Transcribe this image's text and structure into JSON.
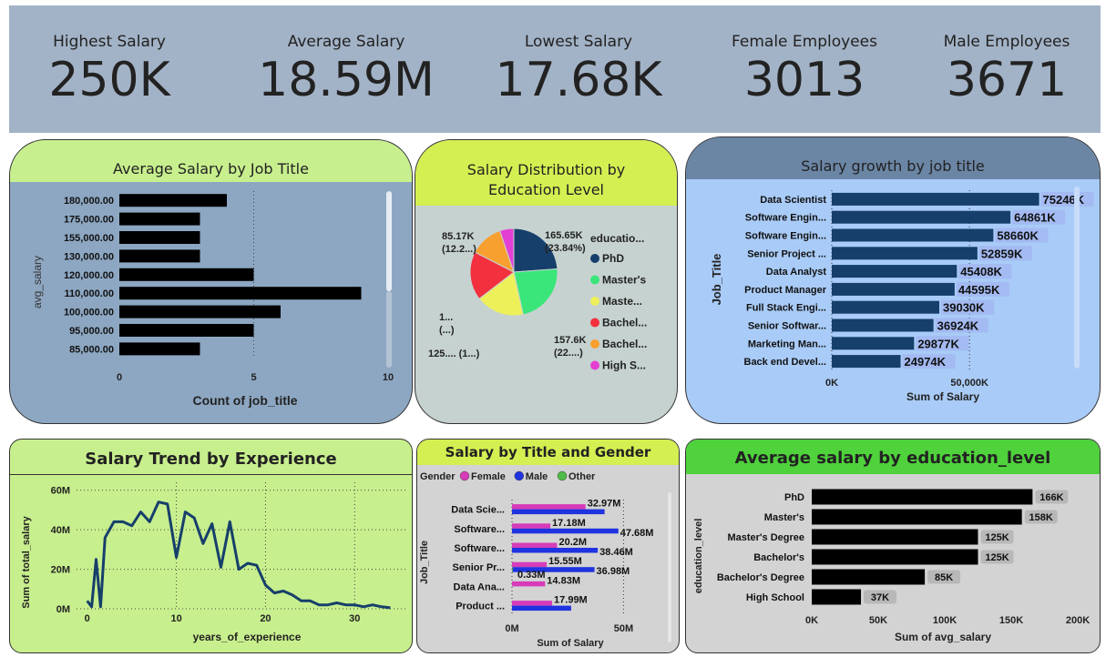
{
  "kpis": [
    {
      "label": "Highest Salary",
      "value": "250K"
    },
    {
      "label": "Average Salary",
      "value": "18.59M"
    },
    {
      "label": "Lowest Salary",
      "value": "17.68K"
    },
    {
      "label": "Female Employees",
      "value": "3013"
    },
    {
      "label": "Male Employees",
      "value": "3671"
    }
  ],
  "colors": {
    "kpi_bg": "#a3b3c7",
    "navy": "#163f6b",
    "black_bar": "#000000",
    "light_green": "#c8ef8e",
    "lime": "#d4ef52",
    "bright_green": "#4fd23c",
    "light_blue": "#a9cbf7",
    "slate": "#8da7c2",
    "gray_card": "#c6d2d0",
    "gray": "#d3d3d3"
  },
  "chart_data": [
    {
      "id": "avg_salary_by_job_title",
      "type": "bar",
      "orientation": "horizontal",
      "title": "Average Salary by Job Title",
      "xlabel": "Count of job_title",
      "ylabel": "avg_salary",
      "categories": [
        "180,000.00",
        "175,000.00",
        "155,000.00",
        "130,000.00",
        "120,000.00",
        "110,000.00",
        "100,000.00",
        "95,000.00",
        "85,000.00"
      ],
      "values": [
        4,
        3,
        3,
        3,
        5,
        9,
        6,
        5,
        3
      ],
      "xlim": [
        0,
        10
      ],
      "xticks": [
        "0",
        "5",
        "10"
      ],
      "grid": true
    },
    {
      "id": "salary_distribution_by_education",
      "type": "pie",
      "title": "Salary Distribution by Education Level",
      "legend_title": "educatio...",
      "legend_position": "right",
      "slices": [
        {
          "name": "PhD",
          "value": 23.84,
          "color": "#163f6b",
          "label": "165.65K",
          "sublabel": "(23.84%)"
        },
        {
          "name": "Master's",
          "value": 22.7,
          "color": "#3ae67a",
          "label": "157.6K",
          "sublabel": "(22....)"
        },
        {
          "name": "Maste...",
          "value": 18.0,
          "color": "#eef05a",
          "label": "125.... (1...)",
          "sublabel": ""
        },
        {
          "name": "Bachel...",
          "value": 18.0,
          "color": "#f2303e",
          "label": "1...",
          "sublabel": "(...)"
        },
        {
          "name": "Bachel...",
          "value": 12.26,
          "color": "#f7a030",
          "label": "85.17K",
          "sublabel": "(12.2...)"
        },
        {
          "name": "High S...",
          "value": 5.2,
          "color": "#e43fd3",
          "label": "",
          "sublabel": ""
        }
      ]
    },
    {
      "id": "salary_growth_by_job_title",
      "type": "bar",
      "orientation": "horizontal",
      "title": "Salary growth by job title",
      "xlabel": "Sum of Salary",
      "ylabel": "Job_Title",
      "categories": [
        "Data Scientist",
        "Software Engin...",
        "Software Engin...",
        "Senior Project ...",
        "Data Analyst",
        "Product Manager",
        "Full Stack Engi...",
        "Senior Softwar...",
        "Marketing Man...",
        "Back end Devel..."
      ],
      "values": [
        75246,
        64861,
        58660,
        52859,
        45408,
        44595,
        39030,
        36924,
        29877,
        24974
      ],
      "data_labels": [
        "75246K",
        "64861K",
        "58660K",
        "52859K",
        "45408K",
        "44595K",
        "39030K",
        "36924K",
        "29877K",
        "24974K"
      ],
      "xlim": [
        0,
        84000
      ],
      "xticks": [
        "0K",
        "50,000K"
      ],
      "grid": true
    },
    {
      "id": "salary_trend_by_experience",
      "type": "line",
      "title": "Salary Trend by Experience",
      "xlabel": "years_of_experience",
      "ylabel": "Sum of total_salary",
      "x": [
        0,
        0.5,
        1,
        1.5,
        2,
        3,
        4,
        5,
        6,
        7,
        8,
        9,
        10,
        11,
        12,
        13,
        14,
        15,
        16,
        17,
        18,
        19,
        20,
        21,
        22,
        23,
        24,
        25,
        26,
        27,
        28,
        29,
        30,
        31,
        32,
        33,
        34
      ],
      "y": [
        4,
        1,
        25,
        1,
        36,
        44,
        44,
        42,
        49,
        44,
        54,
        53,
        26,
        49,
        46,
        33,
        43,
        21,
        44,
        20,
        23,
        22,
        12,
        8,
        9,
        7,
        4,
        4,
        2,
        2,
        3,
        2,
        2,
        1,
        2,
        1,
        0.5
      ],
      "xlim": [
        -1.2,
        36
      ],
      "ylim": [
        0,
        64
      ],
      "xticks": [
        "0",
        "10",
        "20",
        "30"
      ],
      "yticks": [
        "0M",
        "20M",
        "40M",
        "60M"
      ],
      "grid": true
    },
    {
      "id": "salary_by_title_and_gender",
      "type": "bar",
      "orientation": "horizontal",
      "title": "Salary by Title and Gender",
      "legend_title": "Gender",
      "legend_position": "top-left",
      "xlabel": "Sum of Salary",
      "ylabel": "Job_Title",
      "categories": [
        "Data Scie...",
        "Software...",
        "Software...",
        "Senior Pr...",
        "Data Ana...",
        "Product ..."
      ],
      "series": [
        {
          "name": "Female",
          "color": "#d63bb9",
          "values": [
            32.97,
            17.18,
            20.2,
            15.55,
            14.83,
            17.99
          ],
          "labels": [
            "32.97M",
            "17.18M",
            "20.2M",
            "15.55M",
            "14.83M",
            "17.99M"
          ]
        },
        {
          "name": "Male",
          "color": "#1f33e0",
          "values": [
            41.5,
            47.68,
            38.46,
            36.98,
            0,
            26.5
          ],
          "labels": [
            "",
            "47.68M",
            "38.46M",
            "36.98M",
            "",
            ""
          ]
        },
        {
          "name": "Other",
          "color": "#4fbb47",
          "values": [
            0,
            0,
            0,
            0.33,
            0,
            0
          ],
          "labels": [
            "",
            "",
            "",
            "0.33M",
            "",
            ""
          ]
        }
      ],
      "xlim": [
        0,
        58
      ],
      "xticks": [
        "0M",
        "50M"
      ],
      "grid": true
    },
    {
      "id": "avg_salary_by_education_level",
      "type": "bar",
      "orientation": "horizontal",
      "title": "Average salary by education_level",
      "xlabel": "Sum of avg_salary",
      "ylabel": "education_level",
      "categories": [
        "PhD",
        "Master's",
        "Master's Degree",
        "Bachelor's",
        "Bachelor's Degree",
        "High School"
      ],
      "values": [
        166,
        158,
        125,
        125,
        85,
        37
      ],
      "data_labels": [
        "166K",
        "158K",
        "125K",
        "125K",
        "85K",
        "37K"
      ],
      "xlim": [
        0,
        200
      ],
      "xticks": [
        "0K",
        "50K",
        "100K",
        "150K",
        "200K"
      ],
      "grid": true
    }
  ]
}
